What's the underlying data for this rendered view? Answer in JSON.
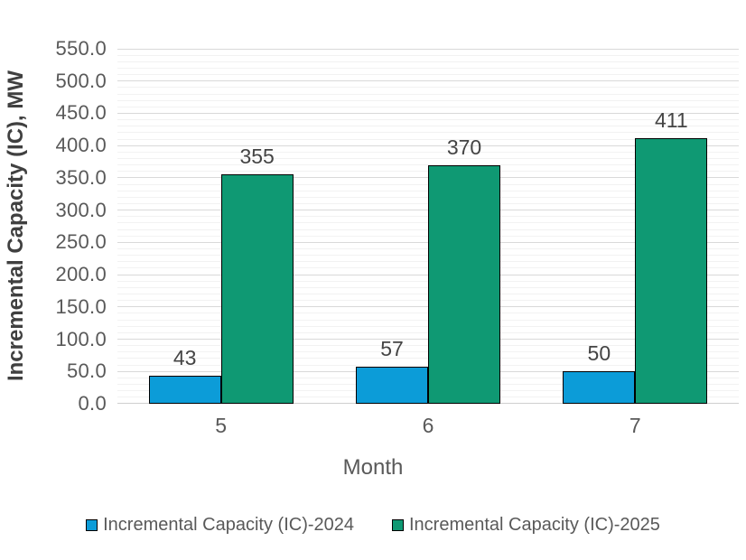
{
  "chart_data": {
    "type": "bar",
    "title": "",
    "categories": [
      "5",
      "6",
      "7"
    ],
    "series": [
      {
        "name": "Incremental Capacity (IC)-2024",
        "color": "#0C9CD8",
        "values": [
          43,
          57,
          50
        ]
      },
      {
        "name": "Incremental Capacity (IC)-2025",
        "color": "#0F9973",
        "values": [
          355,
          370,
          411
        ]
      }
    ],
    "xlabel": "Month",
    "ylabel": "Incremental Capacity (IC), MW",
    "ylim": [
      0,
      550
    ],
    "y_major_unit": 50,
    "y_minor_unit": 10,
    "y_tick_labels": [
      "0.0",
      "50.0",
      "100.0",
      "150.0",
      "200.0",
      "250.0",
      "300.0",
      "350.0",
      "400.0",
      "450.0",
      "500.0",
      "550.0"
    ],
    "grid": "horizontal major and minor gridlines",
    "legend_position": "bottom",
    "data_labels_shown": true,
    "colors": {
      "background": "#FFFFFF",
      "axis_text": "#595959",
      "axis_title_text": "#404040",
      "data_label_text": "#444444",
      "major_gridline": "#D9D9D9",
      "minor_gridline": "#F2F2F2",
      "axis_line": "#CFCFCF",
      "bar_border": "#000000"
    }
  }
}
